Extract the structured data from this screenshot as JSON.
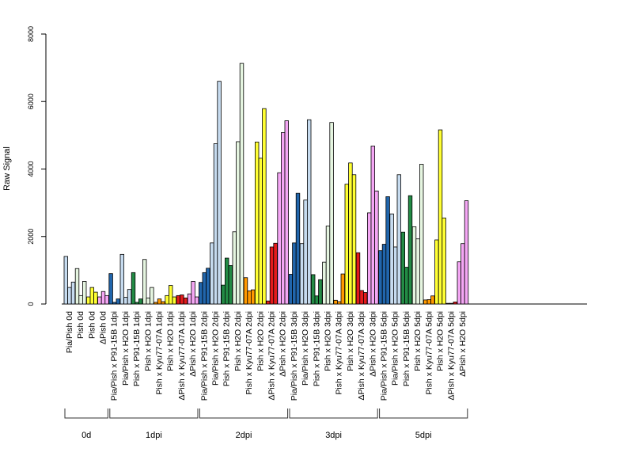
{
  "chart_data": {
    "type": "bar",
    "title": "",
    "xlabel": "",
    "ylabel": "Raw Signal",
    "ylim": [
      0,
      8000
    ],
    "yticks": [
      0,
      2000,
      4000,
      6000,
      8000
    ],
    "grid": false,
    "legend": "none",
    "categories": [
      "Pia/Pish 0d",
      "Pish 0d",
      "Pish 0d",
      "ΔPish 0d",
      "Pia/Pish x P91-15B 1dpi",
      "Pia/Pish x H2O 1dpi",
      "Pish x P91-15B 1dpi",
      "Pish x H2O 1dpi",
      "Pish x Kyu77-07A 1dpi",
      "Pish x H2O 1dpi",
      "ΔPish x Kyu77-07A 1dpi",
      "ΔPish x H2O 1dpi",
      "Pia/Pish x P91-15B 2dpi",
      "Pia/Pish x H2O 2dpi",
      "Pish x P91-15B 2dpi",
      "Pish x H2O 2dpi",
      "Pish x Kyu77-07A 2dpi",
      "Pish x H2O 2dpi",
      "ΔPish x Kyu77-07A 2dpi",
      "ΔPish x H2O 2dpi",
      "Pia/Pish x P91-15B 3dpi",
      "Pia/Pish x H2O 3dpi",
      "Pish x P91-15B 3dpi",
      "Pish x H2O 3dpi",
      "Pish x Kyu77-07A 3dpi",
      "Pish x H2O 3dpi",
      "ΔPish x Kyu77-07A 3dpi",
      "ΔPish x H2O 3dpi",
      "Pia/Pish x P91-15B 5dpi",
      "Pia/Pish x H2O 5dpi",
      "Pish x P91-15B 5dpi",
      "Pish x H2O 5dpi",
      "Pish x Kyu77-07A 5dpi",
      "Pish x H2O 5dpi",
      "ΔPish x Kyu77-07A 5dpi",
      "ΔPish x H2O 5dpi"
    ],
    "colors": [
      "#c6dbef",
      "#e5f5e0",
      "#ffff33",
      "#f4a6f4",
      "#2166ac",
      "#c6dbef",
      "#238b45",
      "#e5f5e0",
      "#ff9900",
      "#ffff33",
      "#e31a1c",
      "#f4a6f4",
      "#2166ac",
      "#c6dbef",
      "#238b45",
      "#e5f5e0",
      "#ff9900",
      "#ffff33",
      "#e31a1c",
      "#f4a6f4",
      "#2166ac",
      "#c6dbef",
      "#238b45",
      "#e5f5e0",
      "#ff9900",
      "#ffff33",
      "#e31a1c",
      "#f4a6f4",
      "#2166ac",
      "#c6dbef",
      "#238b45",
      "#e5f5e0",
      "#ff9900",
      "#ffff33",
      "#e31a1c",
      "#f4a6f4"
    ],
    "values": [
      [
        1410,
        490,
        650
      ],
      [
        1050,
        250,
        670
      ],
      [
        210,
        490,
        350
      ],
      [
        210,
        370,
        250
      ],
      [
        900,
        50,
        150
      ],
      [
        1470,
        200,
        430
      ],
      [
        930,
        50,
        150
      ],
      [
        1320,
        180,
        490
      ],
      [
        50,
        150,
        70
      ],
      [
        250,
        550,
        210
      ],
      [
        250,
        270,
        180
      ],
      [
        300,
        670,
        210
      ],
      [
        640,
        930,
        1060
      ],
      [
        1810,
        4750,
        6600
      ],
      [
        560,
        1360,
        1140
      ],
      [
        2140,
        4810,
        7130
      ],
      [
        780,
        390,
        420
      ],
      [
        4800,
        4320,
        5790
      ],
      [
        90,
        1690,
        1800
      ],
      [
        3890,
        5080,
        5430
      ],
      [
        880,
        1810,
        3280
      ],
      [
        1790,
        3080,
        5460
      ],
      [
        870,
        240,
        720
      ],
      [
        1240,
        2310,
        5380
      ],
      [
        110,
        70,
        890
      ],
      [
        3550,
        4180,
        3830
      ],
      [
        1520,
        400,
        340
      ],
      [
        2700,
        4680,
        3350
      ],
      [
        1580,
        1770,
        3180
      ],
      [
        2670,
        1690,
        3830
      ],
      [
        2130,
        1090,
        3210
      ],
      [
        2290,
        1930,
        4140
      ],
      [
        120,
        130,
        240
      ],
      [
        1900,
        5160,
        2550
      ],
      [
        20,
        20,
        60
      ],
      [
        1250,
        1790,
        3060
      ]
    ],
    "groups": [
      {
        "label": "0d",
        "first": 0,
        "last": 3
      },
      {
        "label": "1dpi",
        "first": 4,
        "last": 11
      },
      {
        "label": "2dpi",
        "first": 12,
        "last": 19
      },
      {
        "label": "3dpi",
        "first": 20,
        "last": 27
      },
      {
        "label": "5dpi",
        "first": 28,
        "last": 35
      }
    ]
  }
}
